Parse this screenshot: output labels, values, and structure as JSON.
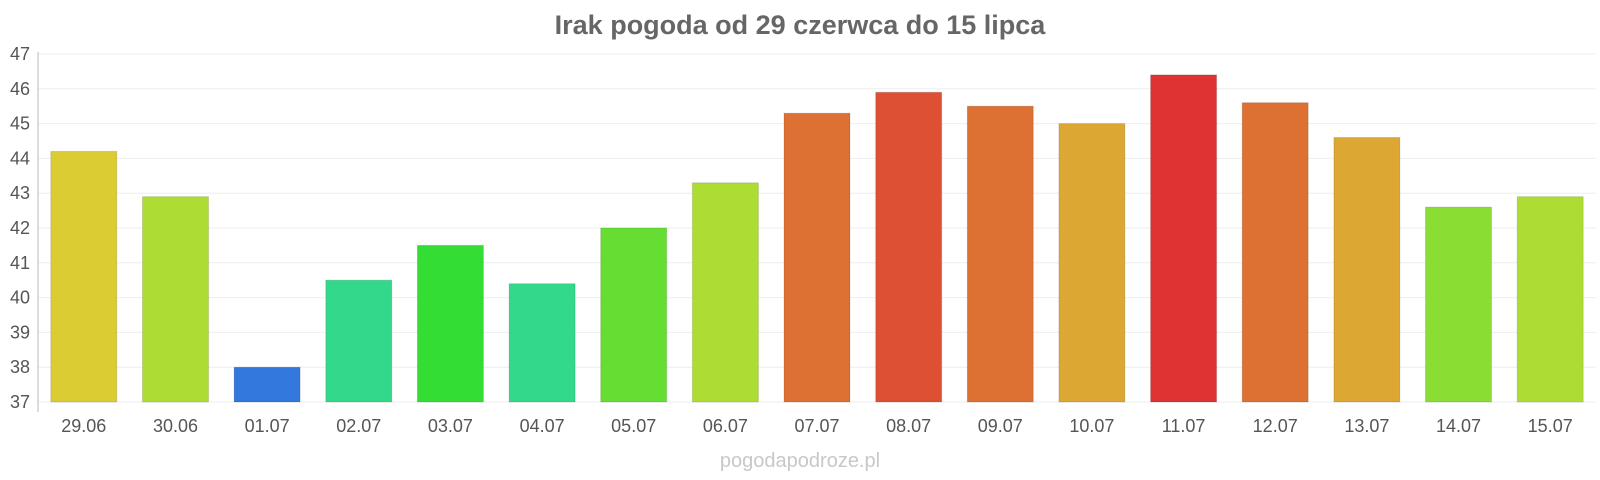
{
  "chart_data": {
    "type": "bar",
    "title": "Irak pogoda od 29 czerwca do 15 lipca",
    "xlabel": "",
    "ylabel": "",
    "ylim": [
      37,
      47
    ],
    "yticks": [
      37,
      38,
      39,
      40,
      41,
      42,
      43,
      44,
      45,
      46,
      47
    ],
    "grid": true,
    "legend": "none",
    "categories": [
      "29.06",
      "30.06",
      "01.07",
      "02.07",
      "03.07",
      "04.07",
      "05.07",
      "06.07",
      "07.07",
      "08.07",
      "09.07",
      "10.07",
      "11.07",
      "12.07",
      "13.07",
      "14.07",
      "15.07"
    ],
    "values": [
      44.2,
      42.9,
      38.0,
      40.5,
      41.5,
      40.4,
      42.0,
      43.3,
      45.3,
      45.9,
      45.5,
      45.0,
      46.4,
      45.6,
      44.6,
      42.6,
      42.9
    ],
    "colors": [
      "#dbcc33",
      "#addd33",
      "#3378dd",
      "#33d98a",
      "#33dd33",
      "#33d98a",
      "#65dd33",
      "#addd33",
      "#dd7033",
      "#dd5033",
      "#dd7033",
      "#dda733",
      "#dd3333",
      "#dd7033",
      "#dda733",
      "#8add33",
      "#addd33"
    ]
  },
  "watermark": "pogodapodroze.pl"
}
